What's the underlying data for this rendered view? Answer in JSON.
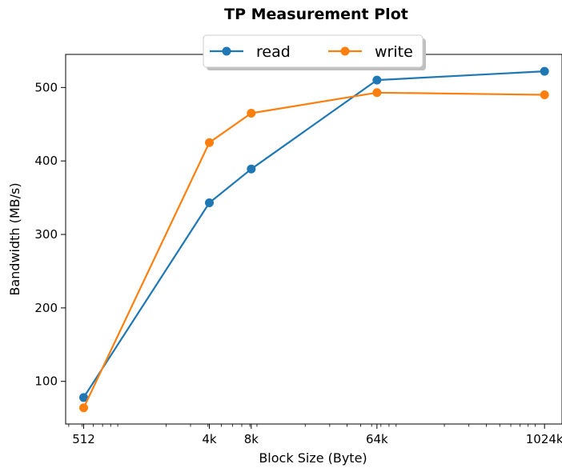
{
  "chart_data": {
    "type": "line",
    "title": "TP Measurement Plot",
    "xlabel": "Block Size (Byte)",
    "ylabel": "Bandwidth (MB/s)",
    "x_scale": "log2",
    "x": [
      512,
      4096,
      8192,
      65536,
      1048576
    ],
    "x_tick_labels": [
      "512",
      "4k",
      "8k",
      "64k",
      "1024k"
    ],
    "xlim": [
      380,
      1400000
    ],
    "ylim": [
      42,
      545
    ],
    "y_ticks": [
      100,
      200,
      300,
      400,
      500
    ],
    "grid": false,
    "legend_position": "top-center",
    "series": [
      {
        "name": "read",
        "color": "#1f77b4",
        "values": [
          78,
          343,
          389,
          510,
          522
        ]
      },
      {
        "name": "write",
        "color": "#ff7f0e",
        "values": [
          64,
          425,
          465,
          493,
          490
        ]
      }
    ]
  }
}
